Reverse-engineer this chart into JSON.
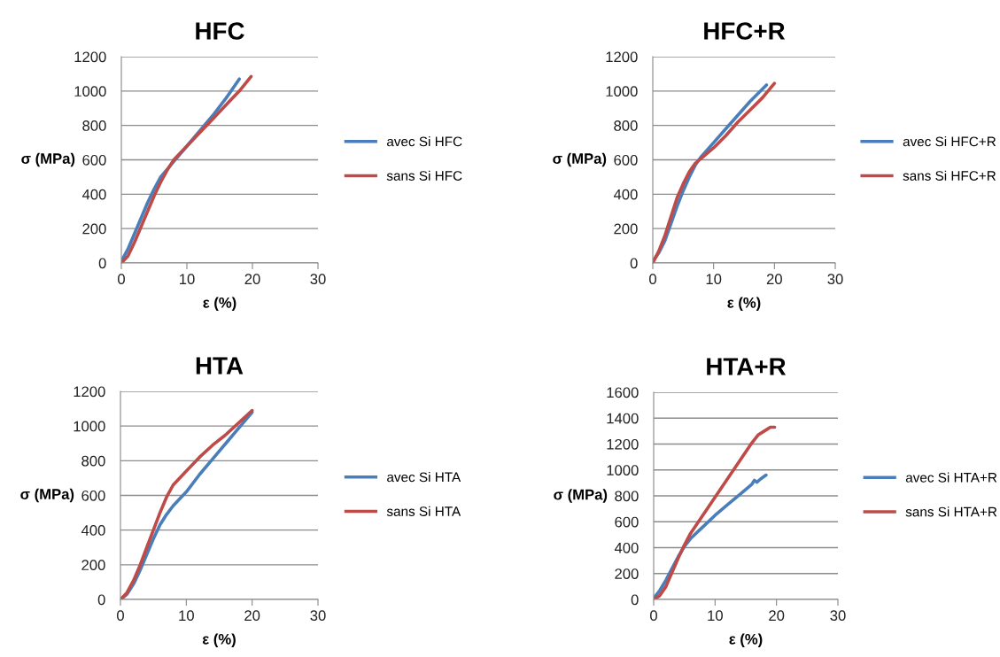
{
  "chart_data": [
    {
      "type": "line",
      "title": "HFC",
      "xlabel": "ε (%)",
      "ylabel": "σ (MPa)",
      "xlim": [
        0,
        30
      ],
      "xticks": [
        0,
        10,
        20,
        30
      ],
      "ylim": [
        0,
        1200
      ],
      "yticks": [
        0,
        200,
        400,
        600,
        800,
        1000,
        1200
      ],
      "grid": "y",
      "legend": "right",
      "marker": "none",
      "line_style": "solid",
      "series": [
        {
          "name": "avec Si HFC",
          "color": "#4a7ebb",
          "x": [
            0,
            1,
            2,
            3,
            4,
            5,
            6,
            8,
            10,
            12,
            14,
            16,
            18
          ],
          "values": [
            10,
            80,
            170,
            260,
            350,
            430,
            500,
            590,
            680,
            770,
            860,
            960,
            1070
          ]
        },
        {
          "name": "sans Si HFC",
          "color": "#be4b48",
          "x": [
            0,
            1,
            2,
            3,
            4,
            5,
            6,
            7,
            8,
            10,
            12,
            14,
            16,
            18,
            19.8
          ],
          "values": [
            0,
            40,
            120,
            210,
            300,
            390,
            470,
            540,
            600,
            680,
            760,
            840,
            920,
            1000,
            1085
          ]
        }
      ]
    },
    {
      "type": "line",
      "title": "HFC+R",
      "xlabel": "ε (%)",
      "ylabel": "σ (MPa)",
      "xlim": [
        0,
        30
      ],
      "xticks": [
        0,
        10,
        20,
        30
      ],
      "ylim": [
        0,
        1200
      ],
      "yticks": [
        0,
        200,
        400,
        600,
        800,
        1000,
        1200
      ],
      "grid": "y",
      "legend": "right",
      "marker": "none",
      "line_style": "solid",
      "series": [
        {
          "name": "avec Si HFC+R",
          "color": "#4a7ebb",
          "x": [
            0,
            1,
            2,
            3,
            4,
            5,
            6,
            7,
            8,
            10,
            12,
            14,
            16,
            18.7
          ],
          "values": [
            10,
            60,
            130,
            230,
            330,
            420,
            500,
            570,
            620,
            700,
            780,
            860,
            940,
            1035
          ]
        },
        {
          "name": "sans Si HFC+R",
          "color": "#be4b48",
          "x": [
            0,
            1,
            2,
            3,
            4,
            5,
            6,
            7,
            8,
            10,
            12,
            14,
            16,
            18,
            20
          ],
          "values": [
            0,
            70,
            160,
            270,
            380,
            460,
            530,
            580,
            610,
            670,
            740,
            820,
            890,
            960,
            1045
          ]
        }
      ]
    },
    {
      "type": "line",
      "title": "HTA",
      "xlabel": "ε (%)",
      "ylabel": "σ (MPa)",
      "xlim": [
        0,
        30
      ],
      "xticks": [
        0,
        10,
        20,
        30
      ],
      "ylim": [
        0,
        1200
      ],
      "yticks": [
        0,
        200,
        400,
        600,
        800,
        1000,
        1200
      ],
      "grid": "y",
      "legend": "right",
      "marker": "none",
      "line_style": "solid",
      "series": [
        {
          "name": "avec Si HTA",
          "color": "#4a7ebb",
          "x": [
            0,
            1,
            2,
            3,
            4,
            5,
            6,
            7,
            8,
            10,
            12,
            14,
            16,
            18,
            20
          ],
          "values": [
            0,
            30,
            90,
            170,
            260,
            350,
            430,
            490,
            540,
            620,
            720,
            810,
            900,
            990,
            1080
          ]
        },
        {
          "name": "sans Si HTA",
          "color": "#be4b48",
          "x": [
            0,
            1,
            2,
            3,
            4,
            5,
            6,
            7,
            8,
            10,
            12,
            14,
            16,
            18,
            20
          ],
          "values": [
            0,
            40,
            110,
            200,
            300,
            400,
            500,
            590,
            660,
            740,
            820,
            890,
            950,
            1020,
            1090
          ]
        }
      ]
    },
    {
      "type": "line",
      "title": "HTA+R",
      "xlabel": "ε (%)",
      "ylabel": "σ (MPa)",
      "xlim": [
        0,
        30
      ],
      "xticks": [
        0,
        10,
        20,
        30
      ],
      "ylim": [
        0,
        1600
      ],
      "yticks": [
        0,
        200,
        400,
        600,
        800,
        1000,
        1200,
        1400,
        1600
      ],
      "grid": "y",
      "legend": "right",
      "marker": "none",
      "line_style": "solid",
      "series": [
        {
          "name": "avec Si HTA+R",
          "color": "#4a7ebb",
          "x": [
            0,
            1,
            2,
            3,
            4,
            5,
            6,
            8,
            10,
            12,
            14,
            16,
            16.4,
            16.8,
            17.4,
            18.3
          ],
          "values": [
            10,
            70,
            150,
            240,
            330,
            410,
            470,
            560,
            650,
            730,
            810,
            890,
            920,
            905,
            930,
            960
          ]
        },
        {
          "name": "sans Si HTA+R",
          "color": "#be4b48",
          "x": [
            0,
            1,
            2,
            3,
            4,
            5,
            6,
            8,
            10,
            12,
            14,
            16,
            17,
            18,
            19,
            19.7
          ],
          "values": [
            0,
            30,
            100,
            210,
            320,
            420,
            510,
            650,
            790,
            930,
            1070,
            1210,
            1270,
            1300,
            1330,
            1330
          ]
        }
      ]
    }
  ]
}
